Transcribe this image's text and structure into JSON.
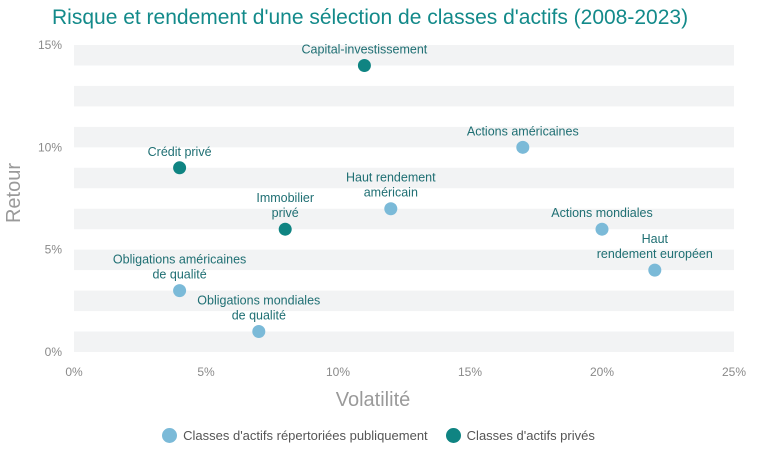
{
  "colors": {
    "public": "#7bbad8",
    "private": "#0f8482",
    "title": "#138a8a",
    "band": "#f2f3f4"
  },
  "legend": {
    "public": "Classes d'actifs répertoriées publiquement",
    "private": "Classes d'actifs privés"
  },
  "chart_data": {
    "type": "scatter",
    "title": "Risque et rendement d'une sélection de classes d'actifs (2008-2023)",
    "xlabel": "Volatilité",
    "ylabel": "Retour",
    "xlim": [
      0,
      25
    ],
    "ylim": [
      0,
      15
    ],
    "xticks": [
      "0%",
      "5%",
      "10%",
      "15%",
      "20%",
      "25%"
    ],
    "yticks": [
      "0%",
      "5%",
      "10%",
      "15%"
    ],
    "grid": "horizontal bands",
    "legend_position": "bottom",
    "series": [
      {
        "name": "Classes d'actifs répertoriées publiquement",
        "group": "public",
        "points": [
          {
            "label": "Actions américaines",
            "x": 17,
            "y": 10
          },
          {
            "label": "Haut rendement américain",
            "x": 12,
            "y": 7
          },
          {
            "label": "Actions mondiales",
            "x": 20,
            "y": 6
          },
          {
            "label": "Haut rendement européen",
            "x": 22,
            "y": 4
          },
          {
            "label": "Obligations américaines de qualité",
            "x": 4,
            "y": 3
          },
          {
            "label": "Obligations mondiales de qualité",
            "x": 7,
            "y": 1
          }
        ]
      },
      {
        "name": "Classes d'actifs privés",
        "group": "private",
        "points": [
          {
            "label": "Capital-investissement",
            "x": 11,
            "y": 14
          },
          {
            "label": "Crédit privé",
            "x": 4,
            "y": 9
          },
          {
            "label": "Immobilier privé",
            "x": 8,
            "y": 6
          }
        ]
      }
    ]
  }
}
